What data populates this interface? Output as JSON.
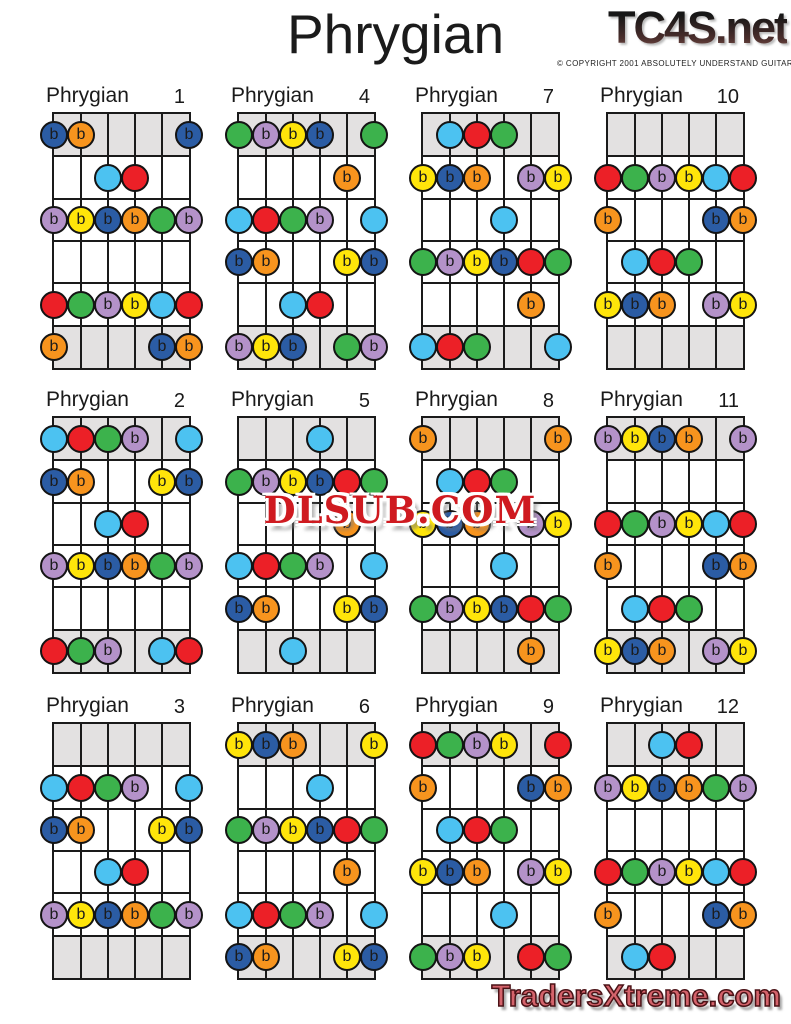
{
  "page": {
    "title": "Phrygian",
    "logo": "TC4S.net",
    "copyright": "© COPYRIGHT 2001 ABSOLUTELY UNDERSTAND GUITAR",
    "watermark": "DLSUB.COM",
    "footer": "TradersXtreme.com"
  },
  "colors": {
    "red": "#ec2027",
    "green": "#3cb24c",
    "skyblue": "#4cc2f1",
    "navy": "#2b5ca4",
    "orange": "#f7941e",
    "yellow": "#ffe50a",
    "purple": "#b492c9"
  },
  "shaded_band_color": "#e3e1e1",
  "flat_colors": [
    "navy",
    "orange",
    "purple",
    "yellow"
  ],
  "flat_symbol": "b",
  "flat_text_color": "#1b1b1b",
  "shaded_rows": [
    0,
    5
  ],
  "diagrams": [
    {
      "name": "Phrygian",
      "number": "1",
      "rows": [
        [
          "navy",
          "orange",
          null,
          null,
          null,
          "navy"
        ],
        [
          null,
          null,
          "skyblue",
          "red",
          null,
          null
        ],
        [
          "purple",
          "yellow",
          "navy",
          "orange",
          "green",
          "purple"
        ],
        [
          null,
          null,
          null,
          null,
          null,
          null
        ],
        [
          "red",
          "green",
          "purple",
          "yellow",
          "skyblue",
          "red"
        ],
        [
          "orange",
          null,
          null,
          null,
          "navy",
          "orange"
        ]
      ]
    },
    {
      "name": "Phrygian",
      "number": "2",
      "rows": [
        [
          "skyblue",
          "red",
          "green",
          "purple",
          null,
          "skyblue"
        ],
        [
          "navy",
          "orange",
          null,
          null,
          "yellow",
          "navy"
        ],
        [
          null,
          null,
          "skyblue",
          "red",
          null,
          null
        ],
        [
          "purple",
          "yellow",
          "navy",
          "orange",
          "green",
          "purple"
        ],
        [
          null,
          null,
          null,
          null,
          null,
          null
        ],
        [
          "red",
          "green",
          "purple",
          null,
          "skyblue",
          "red"
        ]
      ]
    },
    {
      "name": "Phrygian",
      "number": "3",
      "rows": [
        [
          null,
          null,
          null,
          null,
          null,
          null
        ],
        [
          "skyblue",
          "red",
          "green",
          "purple",
          null,
          "skyblue"
        ],
        [
          "navy",
          "orange",
          null,
          null,
          "yellow",
          "navy"
        ],
        [
          null,
          null,
          "skyblue",
          "red",
          null,
          null
        ],
        [
          "purple",
          "yellow",
          "navy",
          "orange",
          "green",
          "purple"
        ],
        [
          null,
          null,
          null,
          null,
          null,
          null
        ]
      ]
    },
    {
      "name": "Phrygian",
      "number": "4",
      "rows": [
        [
          "green",
          "purple",
          "yellow",
          "navy",
          null,
          "green"
        ],
        [
          null,
          null,
          null,
          null,
          "orange",
          null
        ],
        [
          "skyblue",
          "red",
          "green",
          "purple",
          null,
          "skyblue"
        ],
        [
          "navy",
          "orange",
          null,
          null,
          "yellow",
          "navy"
        ],
        [
          null,
          null,
          "skyblue",
          "red",
          null,
          null
        ],
        [
          "purple",
          "yellow",
          "navy",
          null,
          "green",
          "purple"
        ]
      ]
    },
    {
      "name": "Phrygian",
      "number": "5",
      "rows": [
        [
          null,
          null,
          null,
          "skyblue",
          null,
          null
        ],
        [
          "green",
          "purple",
          "yellow",
          "navy",
          "red",
          "green"
        ],
        [
          null,
          null,
          null,
          null,
          "orange",
          null
        ],
        [
          "skyblue",
          "red",
          "green",
          "purple",
          null,
          "skyblue"
        ],
        [
          "navy",
          "orange",
          null,
          null,
          "yellow",
          "navy"
        ],
        [
          null,
          null,
          "skyblue",
          null,
          null,
          null
        ]
      ]
    },
    {
      "name": "Phrygian",
      "number": "6",
      "rows": [
        [
          "yellow",
          "navy",
          "orange",
          null,
          null,
          "yellow"
        ],
        [
          null,
          null,
          null,
          "skyblue",
          null,
          null
        ],
        [
          "green",
          "purple",
          "yellow",
          "navy",
          "red",
          "green"
        ],
        [
          null,
          null,
          null,
          null,
          "orange",
          null
        ],
        [
          "skyblue",
          "red",
          "green",
          "purple",
          null,
          "skyblue"
        ],
        [
          "navy",
          "orange",
          null,
          null,
          "yellow",
          "navy"
        ]
      ]
    },
    {
      "name": "Phrygian",
      "number": "7",
      "rows": [
        [
          null,
          "skyblue",
          "red",
          "green",
          null,
          null
        ],
        [
          "yellow",
          "navy",
          "orange",
          null,
          "purple",
          "yellow"
        ],
        [
          null,
          null,
          null,
          "skyblue",
          null,
          null
        ],
        [
          "green",
          "purple",
          "yellow",
          "navy",
          "red",
          "green"
        ],
        [
          null,
          null,
          null,
          null,
          "orange",
          null
        ],
        [
          "skyblue",
          "red",
          "green",
          null,
          null,
          "skyblue"
        ]
      ]
    },
    {
      "name": "Phrygian",
      "number": "8",
      "rows": [
        [
          "orange",
          null,
          null,
          null,
          null,
          "orange"
        ],
        [
          null,
          "skyblue",
          "red",
          "green",
          null,
          null
        ],
        [
          "yellow",
          "navy",
          "orange",
          null,
          "purple",
          "yellow"
        ],
        [
          null,
          null,
          null,
          "skyblue",
          null,
          null
        ],
        [
          "green",
          "purple",
          "yellow",
          "navy",
          "red",
          "green"
        ],
        [
          null,
          null,
          null,
          null,
          "orange",
          null
        ]
      ]
    },
    {
      "name": "Phrygian",
      "number": "9",
      "rows": [
        [
          "red",
          "green",
          "purple",
          "yellow",
          null,
          "red"
        ],
        [
          "orange",
          null,
          null,
          null,
          "navy",
          "orange"
        ],
        [
          null,
          "skyblue",
          "red",
          "green",
          null,
          null
        ],
        [
          "yellow",
          "navy",
          "orange",
          null,
          "purple",
          "yellow"
        ],
        [
          null,
          null,
          null,
          "skyblue",
          null,
          null
        ],
        [
          "green",
          "purple",
          "yellow",
          null,
          "red",
          "green"
        ]
      ]
    },
    {
      "name": "Phrygian",
      "number": "10",
      "rows": [
        [
          null,
          null,
          null,
          null,
          null,
          null
        ],
        [
          "red",
          "green",
          "purple",
          "yellow",
          "skyblue",
          "red"
        ],
        [
          "orange",
          null,
          null,
          null,
          "navy",
          "orange"
        ],
        [
          null,
          "skyblue",
          "red",
          "green",
          null,
          null
        ],
        [
          "yellow",
          "navy",
          "orange",
          null,
          "purple",
          "yellow"
        ],
        [
          null,
          null,
          null,
          null,
          null,
          null
        ]
      ]
    },
    {
      "name": "Phrygian",
      "number": "11",
      "rows": [
        [
          "purple",
          "yellow",
          "navy",
          "orange",
          null,
          "purple"
        ],
        [
          null,
          null,
          null,
          null,
          null,
          null
        ],
        [
          "red",
          "green",
          "purple",
          "yellow",
          "skyblue",
          "red"
        ],
        [
          "orange",
          null,
          null,
          null,
          "navy",
          "orange"
        ],
        [
          null,
          "skyblue",
          "red",
          "green",
          null,
          null
        ],
        [
          "yellow",
          "navy",
          "orange",
          null,
          "purple",
          "yellow"
        ]
      ]
    },
    {
      "name": "Phrygian",
      "number": "12",
      "rows": [
        [
          null,
          null,
          "skyblue",
          "red",
          null,
          null
        ],
        [
          "purple",
          "yellow",
          "navy",
          "orange",
          "green",
          "purple"
        ],
        [
          null,
          null,
          null,
          null,
          null,
          null
        ],
        [
          "red",
          "green",
          "purple",
          "yellow",
          "skyblue",
          "red"
        ],
        [
          "orange",
          null,
          null,
          null,
          "navy",
          "orange"
        ],
        [
          null,
          "skyblue",
          "red",
          null,
          null,
          null
        ]
      ]
    }
  ]
}
